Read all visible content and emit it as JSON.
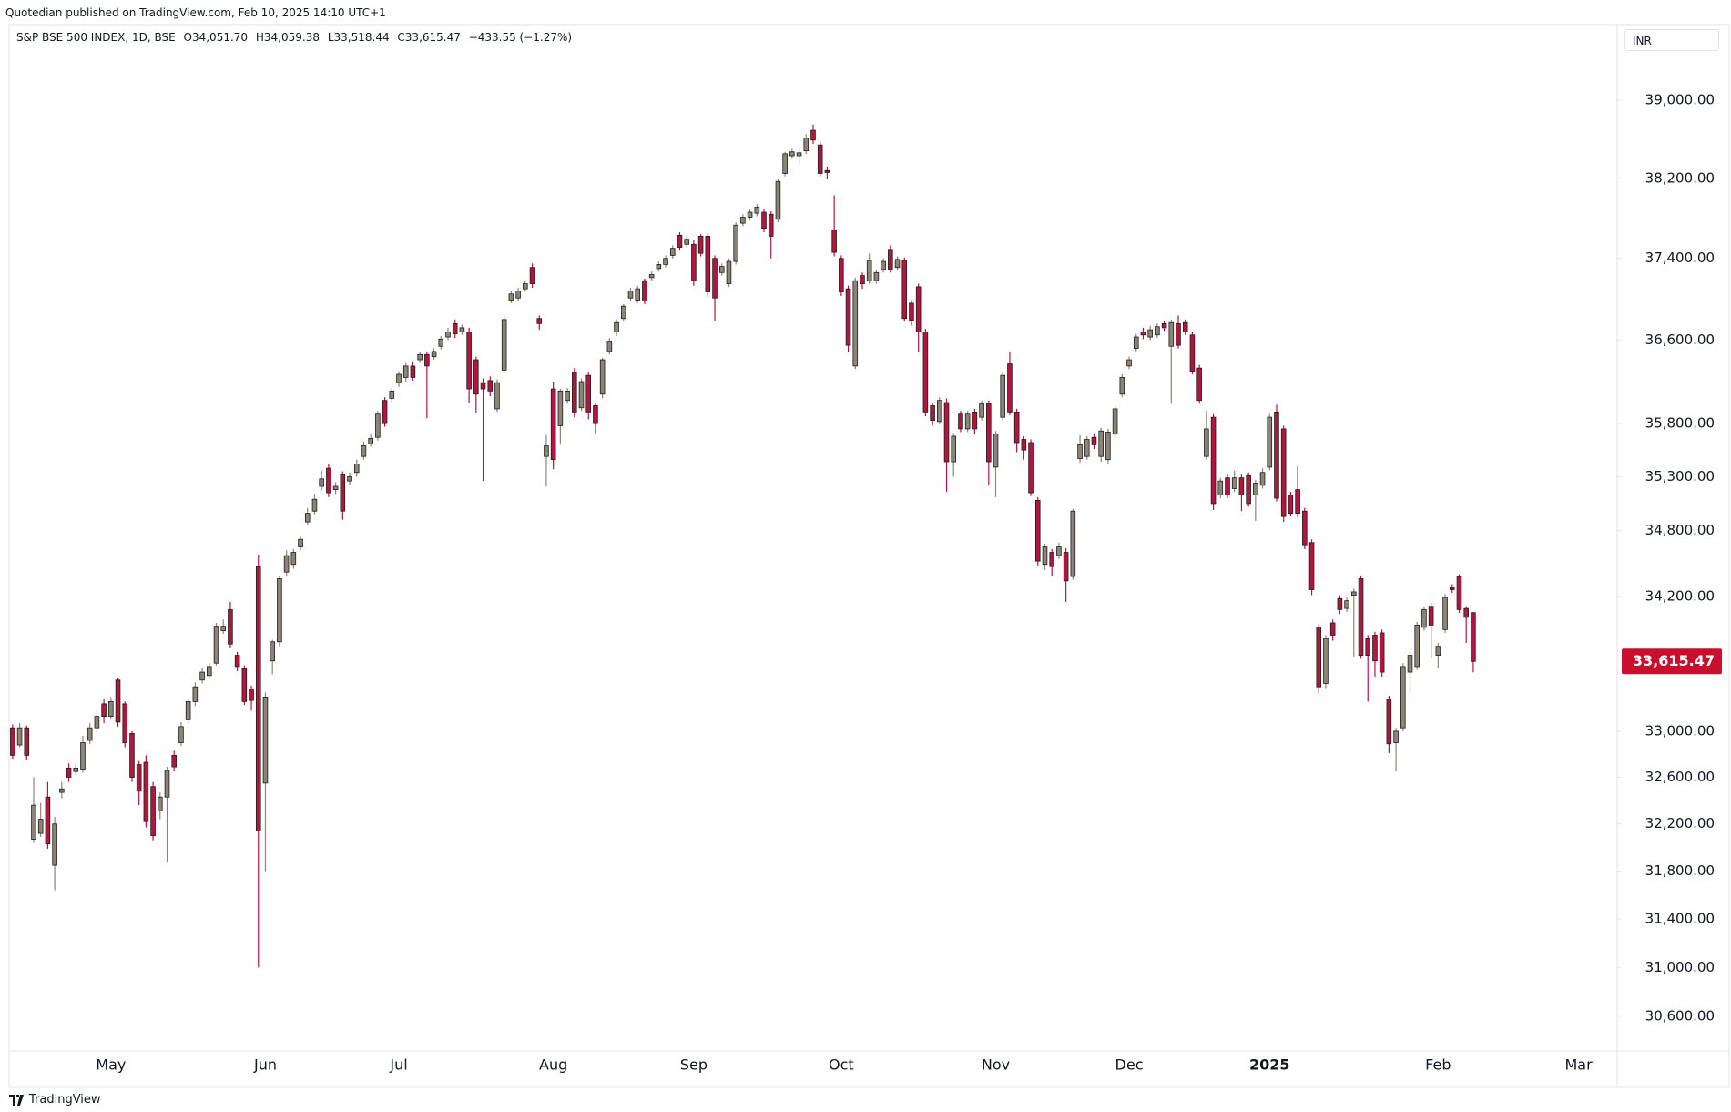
{
  "header": {
    "attribution": "Quotedian published on TradingView.com, Feb 10, 2025 14:10 UTC+1",
    "symbol": "S&P BSE 500 INDEX, 1D, BSE",
    "ohlc": [
      "O34,051.70",
      "H34,059.38",
      "L33,518.44",
      "C33,615.47"
    ],
    "change": "−433.55 (−1.27%)"
  },
  "currency": "INR",
  "footer": "TradingView",
  "chart_data": {
    "type": "candlestick",
    "log_scale": true,
    "up_color": "#8c8577",
    "down_color": "#b2163d",
    "outline_color": "#1e1e1e",
    "last_price_label": "33,615.47",
    "last_price_color": "#c8102e",
    "ylim": [
      30322,
      39788
    ],
    "yticks": [
      {
        "value": 30600,
        "label": "30,600.00"
      },
      {
        "value": 31000,
        "label": "31,000.00"
      },
      {
        "value": 31400,
        "label": "31,400.00"
      },
      {
        "value": 31800,
        "label": "31,800.00"
      },
      {
        "value": 32200,
        "label": "32,200.00"
      },
      {
        "value": 32600,
        "label": "32,600.00"
      },
      {
        "value": 33000,
        "label": "33,000.00"
      },
      {
        "value": 34200,
        "label": "34,200.00"
      },
      {
        "value": 34800,
        "label": "34,800.00"
      },
      {
        "value": 35300,
        "label": "35,300.00"
      },
      {
        "value": 35800,
        "label": "35,800.00"
      },
      {
        "value": 36600,
        "label": "36,600.00"
      },
      {
        "value": 37400,
        "label": "37,400.00"
      },
      {
        "value": 38200,
        "label": "38,200.00"
      },
      {
        "value": 39000,
        "label": "39,000.00"
      }
    ],
    "categories": [
      null,
      null,
      null,
      null,
      null,
      null,
      null,
      null,
      null,
      null,
      null,
      null,
      null,
      null,
      "May",
      null,
      null,
      null,
      null,
      null,
      null,
      null,
      null,
      null,
      null,
      null,
      null,
      null,
      null,
      null,
      null,
      null,
      null,
      null,
      null,
      null,
      "Jun",
      null,
      null,
      null,
      null,
      null,
      null,
      null,
      null,
      null,
      null,
      null,
      null,
      null,
      null,
      null,
      null,
      null,
      null,
      "Jul",
      null,
      null,
      null,
      null,
      null,
      null,
      null,
      null,
      null,
      null,
      null,
      null,
      null,
      null,
      null,
      null,
      null,
      null,
      null,
      null,
      null,
      "Aug",
      null,
      null,
      null,
      null,
      null,
      null,
      null,
      null,
      null,
      null,
      null,
      null,
      null,
      null,
      null,
      null,
      null,
      null,
      null,
      "Sep",
      null,
      null,
      null,
      null,
      null,
      null,
      null,
      null,
      null,
      null,
      null,
      null,
      null,
      null,
      null,
      null,
      null,
      null,
      null,
      null,
      "Oct",
      null,
      null,
      null,
      null,
      null,
      null,
      null,
      null,
      null,
      null,
      null,
      null,
      null,
      null,
      null,
      null,
      null,
      null,
      null,
      null,
      null,
      "Nov",
      null,
      null,
      null,
      null,
      null,
      null,
      null,
      null,
      null,
      null,
      null,
      null,
      null,
      null,
      null,
      null,
      null,
      null,
      "Dec",
      null,
      null,
      null,
      null,
      null,
      null,
      null,
      null,
      null,
      null,
      null,
      null,
      null,
      null,
      null,
      null,
      null,
      null,
      null,
      "2025",
      null,
      null,
      null,
      null,
      null,
      null,
      null,
      null,
      null,
      null,
      null,
      null,
      null,
      null,
      null,
      null,
      null,
      null,
      null,
      null,
      null,
      null,
      null,
      "Feb",
      null,
      null,
      null,
      null,
      null,
      null,
      null,
      null,
      null,
      null,
      null,
      null,
      null,
      null,
      null,
      null,
      null,
      null,
      null,
      "Mar",
      null,
      null,
      null,
      null,
      null
    ],
    "open": [
      33030,
      32880,
      33030,
      32070,
      32120,
      32430,
      31850,
      32470,
      32680,
      32650,
      32670,
      32920,
      33030,
      33240,
      33130,
      33450,
      33240,
      32980,
      32710,
      32730,
      32520,
      32310,
      32430,
      32790,
      32900,
      33100,
      33260,
      33450,
      33490,
      33600,
      33890,
      34080,
      33670,
      33550,
      33370,
      34470,
      32550,
      33620,
      33790,
      34420,
      34490,
      34650,
      34880,
      34980,
      35210,
      35380,
      35180,
      35320,
      35260,
      35340,
      35490,
      35610,
      35670,
      36020,
      36040,
      36190,
      36240,
      36350,
      36410,
      36460,
      36440,
      36540,
      36630,
      36760,
      36680,
      36680,
      36410,
      36190,
      36210,
      35940,
      36310,
      36990,
      37010,
      37100,
      37310,
      36810,
      35490,
      36130,
      35780,
      36020,
      36290,
      35950,
      36260,
      35970,
      36080,
      36490,
      36680,
      36810,
      37010,
      36990,
      37180,
      37210,
      37300,
      37340,
      37430,
      37630,
      37540,
      37540,
      37620,
      37620,
      37400,
      37260,
      37150,
      37370,
      37750,
      37810,
      37850,
      37860,
      37840,
      37790,
      38250,
      38430,
      38430,
      38480,
      38690,
      38540,
      38280,
      37680,
      37400,
      37100,
      36350,
      37230,
      37180,
      37180,
      37290,
      37490,
      37310,
      37380,
      36960,
      37120,
      36680,
      35970,
      35820,
      36000,
      35440,
      35890,
      35750,
      35910,
      35860,
      35990,
      35390,
      35860,
      36370,
      35910,
      35650,
      35620,
      35080,
      34490,
      34600,
      34570,
      34600,
      34380,
      35470,
      35490,
      35670,
      35490,
      35460,
      35700,
      36080,
      36350,
      36520,
      36680,
      36630,
      36650,
      36760,
      36540,
      36760,
      36770,
      36650,
      36330,
      35490,
      35860,
      35130,
      35290,
      35190,
      35290,
      35310,
      35130,
      35220,
      35390,
      35910,
      35750,
      35130,
      35180,
      34980,
      34690,
      33920,
      33420,
      33960,
      34180,
      34090,
      34210,
      34360,
      33820,
      33850,
      33870,
      33280,
      32900,
      33030,
      33520,
      33570,
      33920,
      34110,
      33670,
      33900,
      34280,
      34380,
      34090,
      34051.7,
      null,
      null,
      null,
      null,
      null,
      null,
      null,
      null,
      null,
      null,
      null,
      null,
      null,
      null,
      null,
      null,
      null,
      null,
      null,
      null
    ],
    "high": [
      33060,
      33070,
      33050,
      32600,
      32380,
      32560,
      32260,
      32560,
      32720,
      32720,
      32960,
      33070,
      33180,
      33280,
      33300,
      33470,
      33260,
      33000,
      32740,
      32790,
      32560,
      32470,
      32690,
      32830,
      33080,
      33290,
      33430,
      33560,
      33600,
      33960,
      33990,
      34150,
      33700,
      33580,
      33400,
      34580,
      33340,
      33810,
      34380,
      34620,
      34630,
      34750,
      35010,
      35140,
      35360,
      35420,
      35250,
      35350,
      35340,
      35460,
      35630,
      35700,
      35920,
      36050,
      36140,
      36300,
      36380,
      36390,
      36490,
      36490,
      36520,
      36640,
      36720,
      36800,
      36750,
      36720,
      36440,
      36230,
      36250,
      36220,
      36830,
      37080,
      37110,
      37180,
      37350,
      36840,
      35690,
      36200,
      36130,
      36140,
      36330,
      36230,
      36290,
      35990,
      36430,
      36620,
      36800,
      36950,
      37110,
      37130,
      37200,
      37270,
      37370,
      37430,
      37530,
      37660,
      37620,
      37580,
      37640,
      37650,
      37430,
      37350,
      37400,
      37760,
      37840,
      37890,
      37940,
      37890,
      37870,
      38200,
      38470,
      38500,
      38500,
      38650,
      38750,
      38570,
      38320,
      38030,
      37430,
      37130,
      37210,
      37260,
      37450,
      37290,
      37400,
      37530,
      37420,
      37410,
      36990,
      37150,
      36710,
      36000,
      36050,
      36040,
      35710,
      35920,
      35920,
      35940,
      36020,
      36020,
      35730,
      36290,
      36480,
      35940,
      35680,
      35650,
      35110,
      34680,
      34630,
      34690,
      34640,
      35000,
      35690,
      35680,
      35700,
      35760,
      35750,
      35970,
      36270,
      36440,
      36660,
      36720,
      36740,
      36760,
      36790,
      36800,
      36840,
      36800,
      36680,
      36360,
      35920,
      35890,
      35290,
      35320,
      35360,
      35320,
      35340,
      35270,
      35380,
      35890,
      35980,
      35780,
      35160,
      35400,
      35010,
      34720,
      33950,
      33850,
      33990,
      34210,
      34190,
      34270,
      34390,
      33850,
      33880,
      33900,
      33310,
      33030,
      33600,
      33700,
      33970,
      34110,
      34140,
      33780,
      34220,
      34310,
      34400,
      34110,
      34059.38,
      null,
      null,
      null,
      null,
      null,
      null,
      null,
      null,
      null,
      null,
      null,
      null,
      null,
      null,
      null,
      null,
      null,
      null,
      null,
      null
    ],
    "low": [
      32760,
      32860,
      32750,
      32040,
      32090,
      31990,
      31640,
      32420,
      32560,
      32620,
      32640,
      32890,
      32990,
      33070,
      33100,
      33040,
      32860,
      32560,
      32360,
      32170,
      32060,
      32240,
      31880,
      32650,
      32870,
      33070,
      33220,
      33420,
      33460,
      33580,
      33860,
      33740,
      33530,
      33230,
      33180,
      31000,
      31800,
      33500,
      33750,
      34380,
      34450,
      34620,
      34850,
      34950,
      35170,
      35110,
      35140,
      34900,
      35220,
      35300,
      35460,
      35580,
      35640,
      35770,
      36000,
      36150,
      36200,
      36210,
      36380,
      35850,
      36410,
      36510,
      36600,
      36620,
      36650,
      36000,
      35900,
      35260,
      36060,
      35910,
      36280,
      36960,
      36980,
      37070,
      37110,
      36700,
      35210,
      35370,
      35600,
      35990,
      35860,
      35920,
      35840,
      35700,
      36040,
      36460,
      36640,
      36780,
      36980,
      36960,
      36950,
      37180,
      37270,
      37310,
      37400,
      37480,
      37510,
      37130,
      37420,
      37020,
      36790,
      37230,
      37120,
      37340,
      37720,
      37780,
      37820,
      37660,
      37400,
      37760,
      38220,
      38400,
      38350,
      38450,
      38550,
      38220,
      38200,
      37420,
      37030,
      36480,
      36320,
      37100,
      37150,
      37150,
      37260,
      37260,
      37280,
      36780,
      36740,
      36480,
      35870,
      35780,
      35790,
      35160,
      35300,
      35720,
      35720,
      35700,
      35830,
      35220,
      35110,
      35830,
      35880,
      35530,
      35460,
      35120,
      34480,
      34440,
      34380,
      34540,
      34150,
      34350,
      35430,
      35460,
      35560,
      35440,
      35420,
      35670,
      36050,
      36320,
      36490,
      36610,
      36600,
      36620,
      36690,
      35990,
      36520,
      36650,
      36270,
      35990,
      35460,
      34990,
      35100,
      35100,
      35160,
      34980,
      35020,
      34890,
      35190,
      35360,
      35070,
      34880,
      34930,
      34920,
      34630,
      34210,
      33330,
      33380,
      33800,
      34040,
      34060,
      33660,
      33640,
      33260,
      33480,
      33480,
      32810,
      32650,
      33000,
      33340,
      33540,
      33890,
      33640,
      33560,
      33870,
      34230,
      34050,
      33780,
      33518.44,
      null,
      null,
      null,
      null,
      null,
      null,
      null,
      null,
      null,
      null,
      null,
      null,
      null,
      null,
      null,
      null,
      null,
      null,
      null,
      null
    ],
    "close": [
      32790,
      33030,
      32790,
      32360,
      32240,
      32030,
      32200,
      32500,
      32600,
      32680,
      32900,
      33030,
      33130,
      33130,
      33260,
      33080,
      32900,
      32600,
      32480,
      32220,
      32100,
      32430,
      32660,
      32690,
      33040,
      33260,
      33390,
      33520,
      33570,
      33930,
      33930,
      33770,
      33570,
      33260,
      33270,
      32140,
      33300,
      33790,
      34360,
      34570,
      34600,
      34720,
      34960,
      35090,
      35280,
      35150,
      35210,
      34980,
      35300,
      35420,
      35590,
      35660,
      35890,
      35800,
      36110,
      36270,
      36350,
      36240,
      36460,
      36350,
      36490,
      36610,
      36680,
      36660,
      36720,
      36130,
      36080,
      36130,
      36110,
      36190,
      36800,
      37050,
      37080,
      37150,
      37150,
      36760,
      35590,
      35460,
      36110,
      36110,
      35910,
      36200,
      35910,
      35800,
      36410,
      36590,
      36770,
      36930,
      37080,
      37100,
      36980,
      37240,
      37340,
      37400,
      37500,
      37510,
      37590,
      37180,
      37450,
      37070,
      37010,
      37320,
      37370,
      37730,
      37810,
      37860,
      37910,
      37700,
      37620,
      38170,
      38450,
      38470,
      38460,
      38610,
      38590,
      38250,
      38260,
      37460,
      37070,
      36550,
      37180,
      37150,
      37380,
      37260,
      37370,
      37290,
      37390,
      36810,
      36790,
      36680,
      35910,
      35830,
      36020,
      35440,
      35680,
      35750,
      35890,
      35750,
      35990,
      35440,
      35700,
      36260,
      35910,
      35620,
      35550,
      35150,
      34520,
      34650,
      34470,
      34650,
      34340,
      34980,
      35600,
      35650,
      35600,
      35730,
      35720,
      35940,
      36240,
      36410,
      36630,
      36650,
      36700,
      36730,
      36720,
      36770,
      36550,
      36680,
      36300,
      36020,
      35750,
      35050,
      35260,
      35130,
      35290,
      35130,
      35050,
      35240,
      35340,
      35860,
      35100,
      34930,
      34960,
      34960,
      34670,
      34260,
      33390,
      33820,
      33850,
      34080,
      34160,
      34240,
      33670,
      33670,
      33620,
      33520,
      32890,
      33000,
      33570,
      33670,
      33940,
      34080,
      33940,
      33750,
      34190,
      34260,
      34080,
      34010,
      33615.47,
      null,
      null,
      null,
      null,
      null,
      null,
      null,
      null,
      null,
      null,
      null,
      null,
      null,
      null,
      null,
      null,
      null,
      null,
      null,
      null
    ]
  }
}
